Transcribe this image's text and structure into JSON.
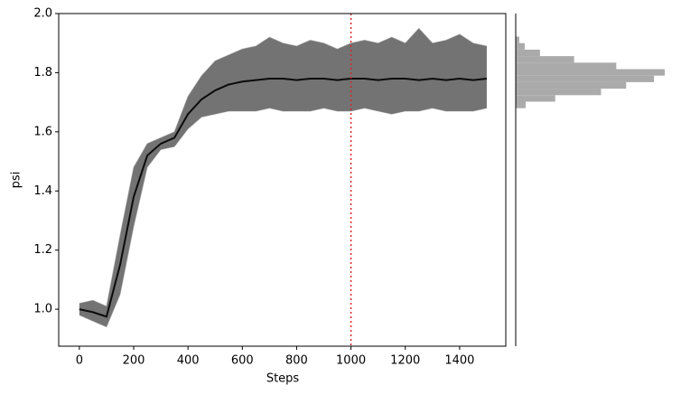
{
  "chart_data": [
    {
      "type": "line",
      "xlabel": "Steps",
      "ylabel": "psi",
      "x": [
        0,
        50,
        100,
        150,
        200,
        250,
        300,
        350,
        400,
        450,
        500,
        550,
        600,
        650,
        700,
        750,
        800,
        850,
        900,
        950,
        1000,
        1050,
        1100,
        1150,
        1200,
        1250,
        1300,
        1350,
        1400,
        1450,
        1500
      ],
      "series": [
        {
          "color": "#8a8a8a",
          "values": [
            0.98,
            0.96,
            0.94,
            1.05,
            1.28,
            1.48,
            1.54,
            1.55,
            1.61,
            1.65,
            1.66,
            1.67,
            1.67,
            1.67,
            1.68,
            1.67,
            1.67,
            1.67,
            1.68,
            1.67,
            1.67,
            1.68,
            1.67,
            1.66,
            1.67,
            1.67,
            1.68,
            1.67,
            1.67,
            1.67,
            1.68
          ]
        },
        {
          "color": "#8a8a8a",
          "values": [
            1.02,
            1.03,
            1.01,
            1.25,
            1.48,
            1.56,
            1.58,
            1.6,
            1.72,
            1.79,
            1.84,
            1.86,
            1.88,
            1.89,
            1.92,
            1.9,
            1.89,
            1.91,
            1.9,
            1.88,
            1.9,
            1.91,
            1.9,
            1.92,
            1.9,
            1.95,
            1.9,
            1.91,
            1.93,
            1.9,
            1.89
          ]
        },
        {
          "color": "#000000",
          "values": [
            1.0,
            0.99,
            0.975,
            1.15,
            1.38,
            1.52,
            1.56,
            1.58,
            1.66,
            1.71,
            1.74,
            1.76,
            1.77,
            1.775,
            1.78,
            1.78,
            1.775,
            1.78,
            1.78,
            1.775,
            1.78,
            1.78,
            1.775,
            1.78,
            1.78,
            1.775,
            1.78,
            1.775,
            1.78,
            1.775,
            1.78
          ]
        }
      ],
      "xlim": [
        -76,
        1570
      ],
      "ylim": [
        0.875,
        2.0
      ],
      "xticks": [
        0,
        200,
        400,
        600,
        800,
        1000,
        1200,
        1400
      ],
      "yticks": [
        {
          "value": 1,
          "label": "1.0"
        },
        {
          "value": 1.2,
          "label": "1.2"
        },
        {
          "value": 1.4,
          "label": "1.4"
        },
        {
          "value": 1.6,
          "label": "1.6"
        },
        {
          "value": 1.8,
          "label": "1.8"
        },
        {
          "value": 2,
          "label": "2.0"
        }
      ],
      "vline": 1000,
      "vline_color": "#d62728"
    },
    {
      "type": "histogram",
      "orientation": "horizontal",
      "color": "#aaaaaa",
      "bins": [
        1.68,
        1.702,
        1.724,
        1.746,
        1.768,
        1.79,
        1.812,
        1.834,
        1.856,
        1.878,
        1.9,
        1.922
      ],
      "counts": [
        11,
        44,
        95,
        123,
        154,
        166,
        112,
        65,
        27,
        10,
        4
      ],
      "xlim": [
        0,
        170
      ],
      "ylim": [
        0.875,
        2.0
      ]
    }
  ]
}
